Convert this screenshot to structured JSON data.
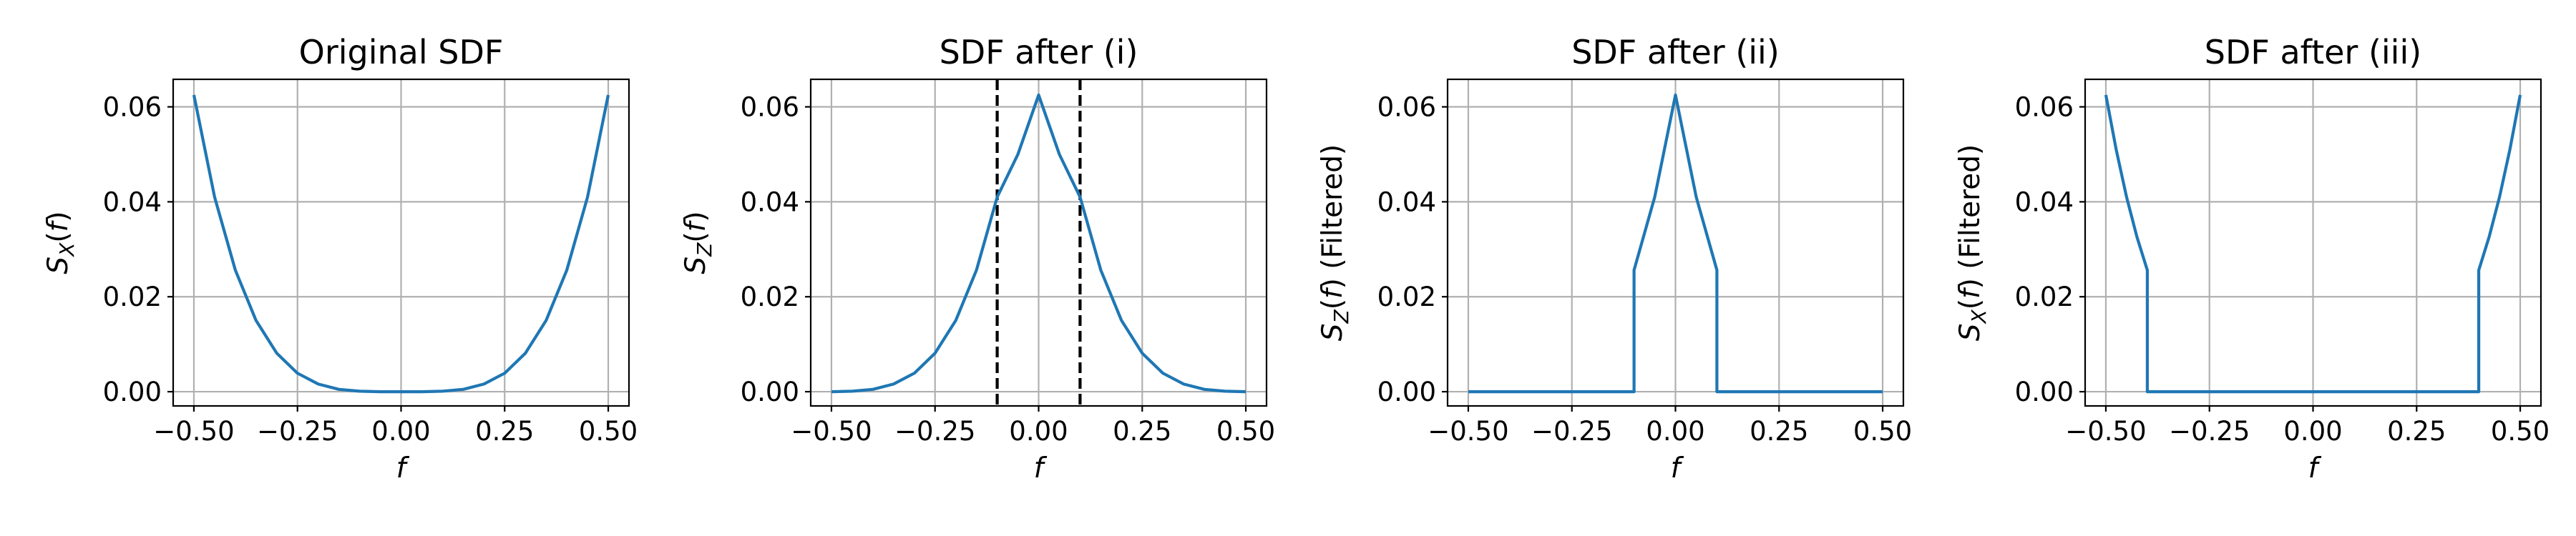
{
  "colors": {
    "series": "#1f77b4",
    "grid": "#b0b0b0",
    "vline": "#000000"
  },
  "chart_data": [
    {
      "type": "line",
      "title": "Original SDF",
      "xlabel": "f",
      "ylabel": "S_X(f)",
      "ylabel_parts": {
        "main": "S",
        "sub": "X",
        "rest": "(f)"
      },
      "xlim": [
        -0.55,
        0.55
      ],
      "ylim": [
        -0.003,
        0.0658
      ],
      "xticks": [
        -0.5,
        -0.25,
        0.0,
        0.25,
        0.5
      ],
      "xtick_labels": [
        "−0.50",
        "−0.25",
        "0.00",
        "0.25",
        "0.50"
      ],
      "yticks": [
        0.0,
        0.02,
        0.04,
        0.06
      ],
      "ytick_labels": [
        "0.00",
        "0.02",
        "0.04",
        "0.06"
      ],
      "grid": true,
      "series": [
        {
          "x": [
            -0.5,
            -0.45,
            -0.4,
            -0.35,
            -0.3,
            -0.25,
            -0.2,
            -0.15,
            -0.1,
            -0.05,
            0.0,
            0.05,
            0.1,
            0.15,
            0.2,
            0.25,
            0.3,
            0.35,
            0.4,
            0.45,
            0.5
          ],
          "y": [
            0.0625,
            0.041,
            0.0256,
            0.015,
            0.0081,
            0.0039,
            0.0016,
            0.0005,
            0.0001,
            0.0,
            0.0,
            0.0,
            0.0001,
            0.0005,
            0.0016,
            0.0039,
            0.0081,
            0.015,
            0.0256,
            0.041,
            0.0625
          ]
        }
      ],
      "vlines": []
    },
    {
      "type": "line",
      "title": "SDF after (i)",
      "xlabel": "f",
      "ylabel": "S_Z(f)",
      "ylabel_parts": {
        "main": "S",
        "sub": "Z",
        "rest": "(f)"
      },
      "xlim": [
        -0.55,
        0.55
      ],
      "ylim": [
        -0.003,
        0.0658
      ],
      "xticks": [
        -0.5,
        -0.25,
        0.0,
        0.25,
        0.5
      ],
      "xtick_labels": [
        "−0.50",
        "−0.25",
        "0.00",
        "0.25",
        "0.50"
      ],
      "yticks": [
        0.0,
        0.02,
        0.04,
        0.06
      ],
      "ytick_labels": [
        "0.00",
        "0.02",
        "0.04",
        "0.06"
      ],
      "grid": true,
      "series": [
        {
          "x": [
            -0.5,
            -0.45,
            -0.4,
            -0.35,
            -0.3,
            -0.25,
            -0.2,
            -0.15,
            -0.1,
            -0.05,
            0.0,
            0.05,
            0.1,
            0.15,
            0.2,
            0.25,
            0.3,
            0.35,
            0.4,
            0.45,
            0.5
          ],
          "y": [
            0.0,
            0.0001,
            0.0005,
            0.0016,
            0.0039,
            0.0081,
            0.015,
            0.0256,
            0.041,
            0.05,
            0.0625,
            0.05,
            0.041,
            0.0256,
            0.015,
            0.0081,
            0.0039,
            0.0016,
            0.0005,
            0.0001,
            0.0
          ]
        }
      ],
      "vlines": [
        -0.1,
        0.1
      ]
    },
    {
      "type": "line",
      "title": "SDF after (ii)",
      "xlabel": "f",
      "ylabel": "S_Z(f) (Filtered)",
      "ylabel_parts": {
        "main": "S",
        "sub": "Z",
        "rest": "(f) (Filtered)"
      },
      "xlim": [
        -0.55,
        0.55
      ],
      "ylim": [
        -0.003,
        0.0658
      ],
      "xticks": [
        -0.5,
        -0.25,
        0.0,
        0.25,
        0.5
      ],
      "xtick_labels": [
        "−0.50",
        "−0.25",
        "0.00",
        "0.25",
        "0.50"
      ],
      "yticks": [
        0.0,
        0.02,
        0.04,
        0.06
      ],
      "ytick_labels": [
        "0.00",
        "0.02",
        "0.04",
        "0.06"
      ],
      "grid": true,
      "series": [
        {
          "x": [
            -0.5,
            -0.1,
            -0.1,
            -0.05,
            0.0,
            0.05,
            0.1,
            0.1,
            0.5
          ],
          "y": [
            0.0,
            0.0,
            0.0256,
            0.041,
            0.0625,
            0.041,
            0.0256,
            0.0,
            0.0
          ]
        }
      ],
      "vlines": []
    },
    {
      "type": "line",
      "title": "SDF after (iii)",
      "xlabel": "f",
      "ylabel": "S_X(f) (Filtered)",
      "ylabel_parts": {
        "main": "S",
        "sub": "X",
        "rest": "(f) (Filtered)"
      },
      "xlim": [
        -0.55,
        0.55
      ],
      "ylim": [
        -0.003,
        0.0658
      ],
      "xticks": [
        -0.5,
        -0.25,
        0.0,
        0.25,
        0.5
      ],
      "xtick_labels": [
        "−0.50",
        "−0.25",
        "0.00",
        "0.25",
        "0.50"
      ],
      "yticks": [
        0.0,
        0.02,
        0.04,
        0.06
      ],
      "ytick_labels": [
        "0.00",
        "0.02",
        "0.04",
        "0.06"
      ],
      "grid": true,
      "series": [
        {
          "x": [
            -0.5,
            -0.475,
            -0.45,
            -0.425,
            -0.4,
            -0.4,
            0.4,
            0.4,
            0.425,
            0.45,
            0.475,
            0.5
          ],
          "y": [
            0.0625,
            0.051,
            0.041,
            0.0326,
            0.0256,
            0.0,
            0.0,
            0.0256,
            0.0326,
            0.041,
            0.051,
            0.0625
          ]
        }
      ],
      "vlines": []
    }
  ]
}
